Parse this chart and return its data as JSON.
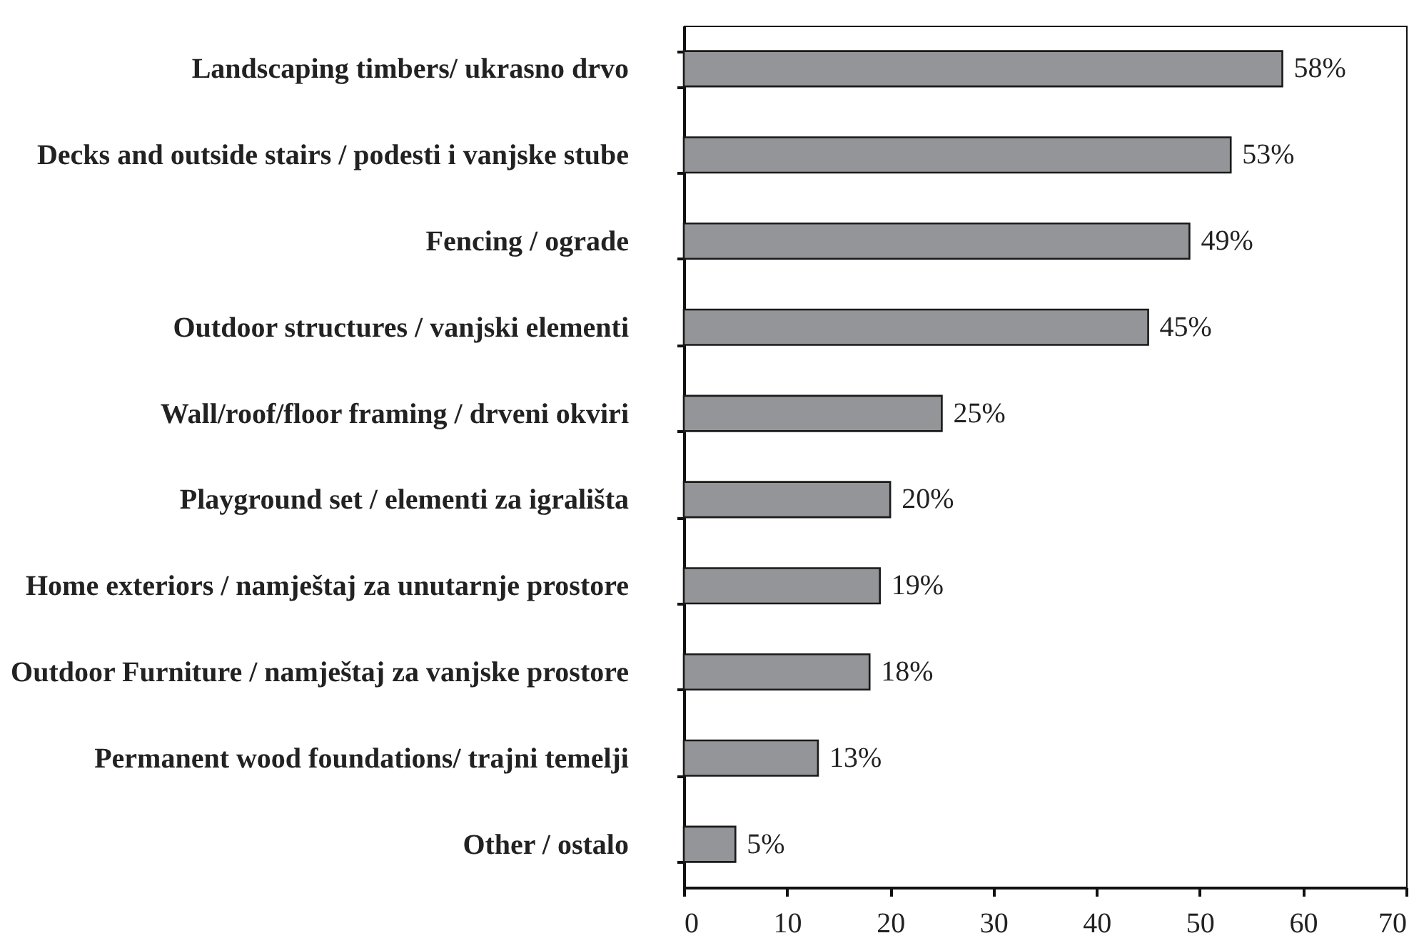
{
  "chart_data": {
    "type": "bar",
    "orientation": "horizontal",
    "categories": [
      "Landscaping timbers/ ukrasno drvo",
      "Decks and outside stairs / podesti i vanjske stube",
      "Fencing / ograde",
      "Outdoor structures / vanjski elementi",
      "Wall/roof/floor framing / drveni okviri",
      "Playground set / elementi za igrališta",
      "Home exteriors / namještaj za unutarnje prostore",
      "Outdoor Furniture / namještaj za vanjske prostore",
      "Permanent wood foundations/ trajni temelji",
      "Other / ostalo"
    ],
    "values": [
      58,
      53,
      49,
      45,
      25,
      20,
      19,
      18,
      13,
      5
    ],
    "value_labels": [
      "58%",
      "53%",
      "49%",
      "45%",
      "25%",
      "20%",
      "19%",
      "18%",
      "13%",
      "5%"
    ],
    "color": "#939598",
    "xlim": [
      0,
      70
    ],
    "xticks": [
      0,
      10,
      20,
      30,
      40,
      50,
      60,
      70
    ],
    "grid": false
  }
}
